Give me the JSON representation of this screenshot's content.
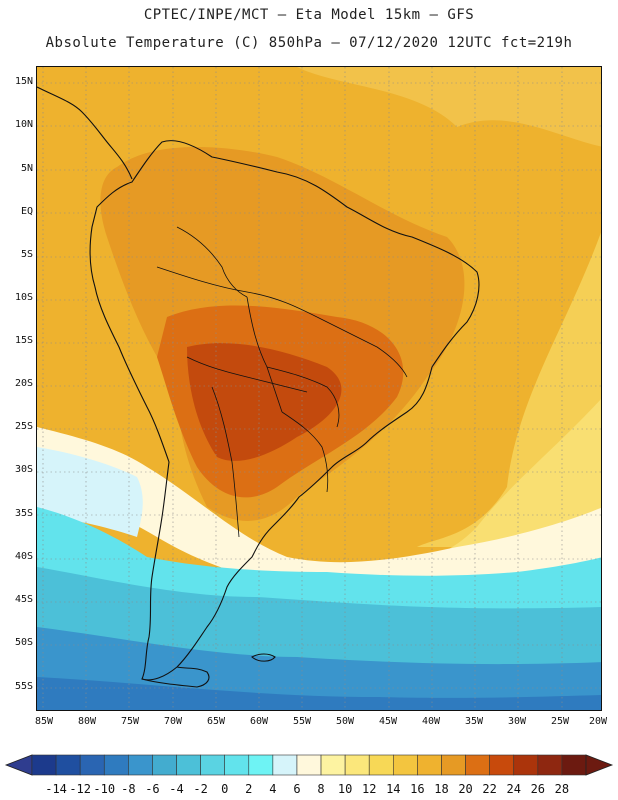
{
  "header": {
    "line1": "CPTEC/INPE/MCT –  Eta Model 15km – GFS",
    "line2": "Absolute Temperature (C) 850hPa – 07/12/2020 12UTC fct=219h"
  },
  "map": {
    "lat_labels": [
      "15N",
      "10N",
      "5N",
      "EQ",
      "5S",
      "10S",
      "15S",
      "20S",
      "25S",
      "30S",
      "35S",
      "40S",
      "45S",
      "50S",
      "55S"
    ],
    "lon_labels": [
      "85W",
      "80W",
      "75W",
      "70W",
      "65W",
      "60W",
      "55W",
      "50W",
      "45W",
      "40W",
      "35W",
      "30W",
      "25W",
      "20W"
    ]
  },
  "legend": {
    "labels": [
      "-14",
      "-12",
      "-10",
      "-8",
      "-6",
      "-4",
      "-2",
      "0",
      "2",
      "4",
      "6",
      "8",
      "10",
      "12",
      "14",
      "16",
      "18",
      "20",
      "22",
      "24",
      "26",
      "28"
    ],
    "colors": [
      "#1c3a8c",
      "#1f4fa0",
      "#2a65b2",
      "#2f7bbf",
      "#3a95cc",
      "#43accf",
      "#4cc0d8",
      "#5ad3e2",
      "#62e3ec",
      "#6ef3f4",
      "#d6f4fa",
      "#fff8dc",
      "#fdf3a1",
      "#fbe77b",
      "#f7d856",
      "#f3c53f",
      "#efb22f",
      "#e69a24",
      "#dc6f14",
      "#c84a0c",
      "#ab340b",
      "#8e2710",
      "#6c1a10"
    ]
  },
  "colors": {
    "warm_background": "#efb32f",
    "land_hot": "#dc6f14",
    "land_hotter": "#c34a0d",
    "cool_band": "#5ad3e2",
    "cold_south": "#2f7bbf"
  }
}
